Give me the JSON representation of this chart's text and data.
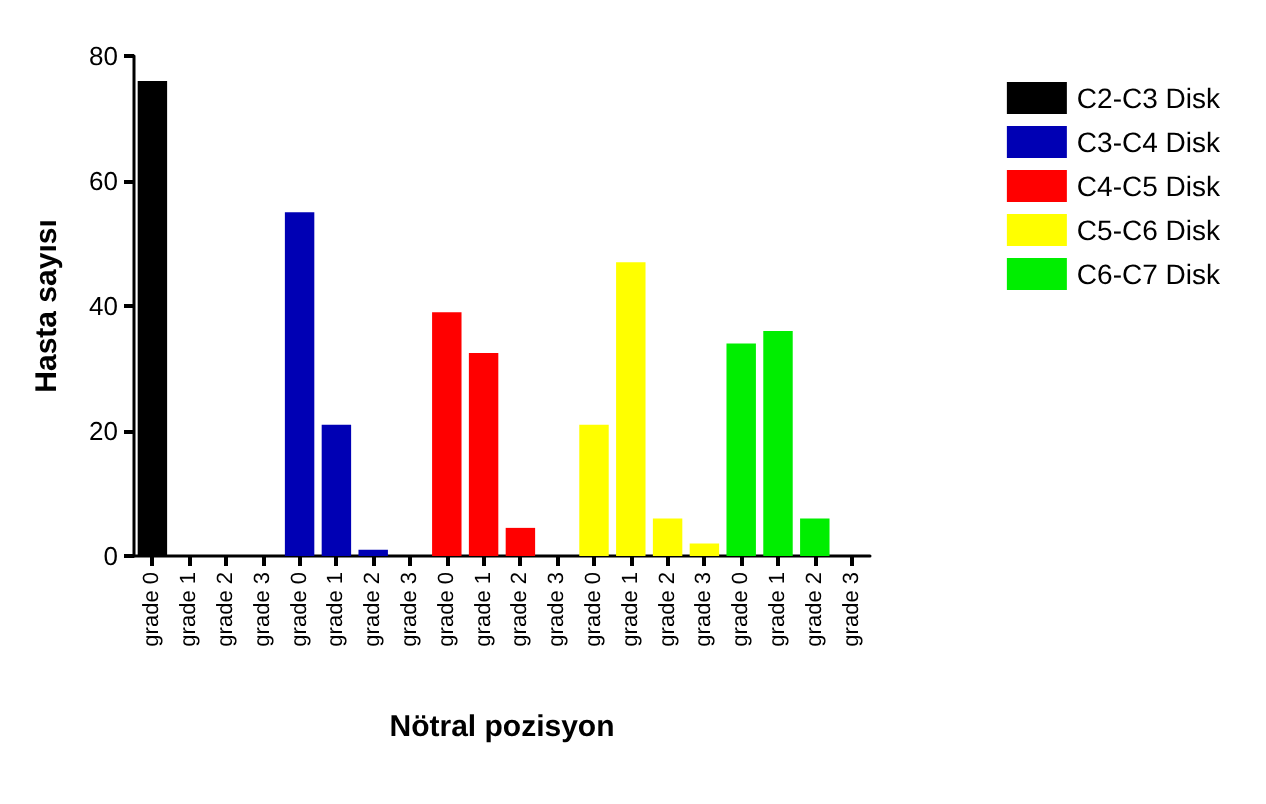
{
  "chart_data": {
    "type": "bar",
    "xlabel": "Nötral pozisyon",
    "ylabel": "Hasta sayısı",
    "categories": [
      "grade 0",
      "grade 1",
      "grade 2",
      "grade 3",
      "grade 0",
      "grade 1",
      "grade 2",
      "grade 3",
      "grade 0",
      "grade 1",
      "grade 2",
      "grade 3",
      "grade 0",
      "grade 1",
      "grade 2",
      "grade 3",
      "grade 0",
      "grade 1",
      "grade 2",
      "grade 3"
    ],
    "series": [
      {
        "name": "C2-C3 Disk",
        "color": "#000000",
        "values": [
          76,
          0,
          0,
          0,
          null,
          null,
          null,
          null,
          null,
          null,
          null,
          null,
          null,
          null,
          null,
          null,
          null,
          null,
          null,
          null
        ]
      },
      {
        "name": "C3-C4 Disk",
        "color": "#0000b4",
        "values": [
          null,
          null,
          null,
          null,
          55,
          21,
          1,
          0,
          null,
          null,
          null,
          null,
          null,
          null,
          null,
          null,
          null,
          null,
          null,
          null
        ]
      },
      {
        "name": "C4-C5 Disk",
        "color": "#ff0000",
        "values": [
          null,
          null,
          null,
          null,
          null,
          null,
          null,
          null,
          39,
          32.5,
          4.5,
          0,
          null,
          null,
          null,
          null,
          null,
          null,
          null,
          null
        ]
      },
      {
        "name": "C5-C6 Disk",
        "color": "#ffff00",
        "values": [
          null,
          null,
          null,
          null,
          null,
          null,
          null,
          null,
          null,
          null,
          null,
          null,
          21,
          47,
          6,
          2,
          null,
          null,
          null,
          null
        ]
      },
      {
        "name": "C6-C7 Disk",
        "color": "#00ee00",
        "values": [
          null,
          null,
          null,
          null,
          null,
          null,
          null,
          null,
          null,
          null,
          null,
          null,
          null,
          null,
          null,
          null,
          34,
          36,
          6,
          0
        ]
      }
    ],
    "ylim": [
      0,
      80
    ],
    "yticks": [
      0,
      20,
      40,
      60,
      80
    ],
    "grid": false,
    "legend": "right"
  }
}
